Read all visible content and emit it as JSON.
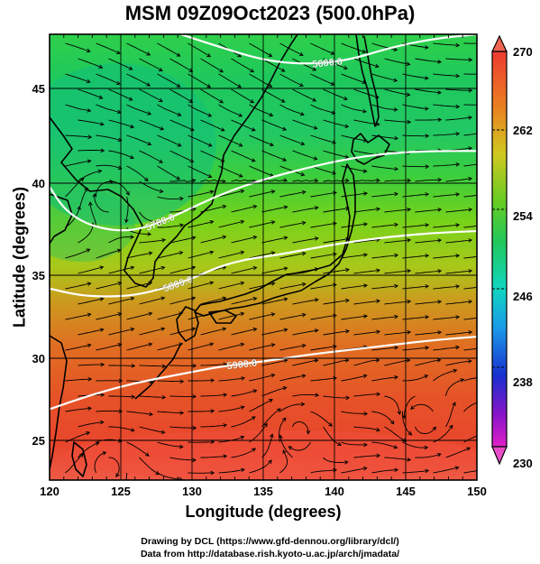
{
  "title": "MSM 09Z09Oct2023 (500.0hPa)",
  "xlabel": "Longitude (degrees)",
  "ylabel": "Latitude  (degrees)",
  "credit_line1": "Drawing by DCL (https://www.gfd-dennou.org/library/dcl/)",
  "credit_line2": "Data from http://database.rish.kyoto-u.ac.jp/arch/jmadata/",
  "x_ticks": [
    "120",
    "125",
    "130",
    "135",
    "140",
    "145",
    "150"
  ],
  "y_ticks": [
    "25",
    "30",
    "35",
    "40",
    "45"
  ],
  "colorbar_ticks": [
    "270",
    "262",
    "254",
    "246",
    "238",
    "230"
  ],
  "contour_labels": [
    "5600.0",
    "5700.0",
    "5800.0",
    "5900.0"
  ],
  "colors": {
    "warm": "#e4542c",
    "mid": "#7ad018",
    "cool": "#17c25a",
    "contour": "#ffffff",
    "coast": "#000000"
  },
  "chart_data": {
    "type": "heatmap",
    "title": "MSM 09Z09Oct2023 (500.0hPa)",
    "xlabel": "Longitude (degrees)",
    "ylabel": "Latitude  (degrees)",
    "xlim": [
      120,
      150
    ],
    "ylim": [
      22.5,
      47.5
    ],
    "colorbar_range": [
      230,
      270
    ],
    "contours": [
      {
        "label": "5600.0",
        "points": [
          [
            129.2,
            47.5
          ],
          [
            132,
            46.9
          ],
          [
            135,
            46.3
          ],
          [
            138,
            46.1
          ],
          [
            141,
            46.3
          ],
          [
            144,
            46.9
          ],
          [
            147,
            47.3
          ],
          [
            150,
            47.5
          ]
        ]
      },
      {
        "label": "5700.0",
        "points": [
          [
            120,
            39.8
          ],
          [
            121,
            38.6
          ],
          [
            122.5,
            37.8
          ],
          [
            124.5,
            37.4
          ],
          [
            126.5,
            37.5
          ],
          [
            129,
            38.3
          ],
          [
            132,
            39.4
          ],
          [
            135,
            40.2
          ],
          [
            138,
            40.8
          ],
          [
            141,
            41.3
          ],
          [
            144,
            41.6
          ],
          [
            147,
            41.7
          ],
          [
            150,
            41.7
          ]
        ]
      },
      {
        "label": "5800.0",
        "points": [
          [
            120,
            34.2
          ],
          [
            122,
            33.8
          ],
          [
            124,
            33.7
          ],
          [
            126,
            33.8
          ],
          [
            128,
            34.2
          ],
          [
            130,
            34.8
          ],
          [
            132,
            35.5
          ],
          [
            134,
            35.9
          ],
          [
            136,
            36.1
          ],
          [
            138,
            36.4
          ],
          [
            141,
            36.8
          ],
          [
            144,
            37.1
          ],
          [
            147,
            37.3
          ],
          [
            150,
            37.4
          ]
        ]
      },
      {
        "label": "5900.0",
        "points": [
          [
            120,
            26.9
          ],
          [
            123,
            27.8
          ],
          [
            126,
            28.5
          ],
          [
            129,
            29.0
          ],
          [
            132,
            29.5
          ],
          [
            135,
            29.8
          ],
          [
            138,
            30.2
          ],
          [
            141,
            30.5
          ],
          [
            144,
            30.8
          ],
          [
            147,
            31.1
          ],
          [
            150,
            31.3
          ]
        ]
      }
    ]
  }
}
